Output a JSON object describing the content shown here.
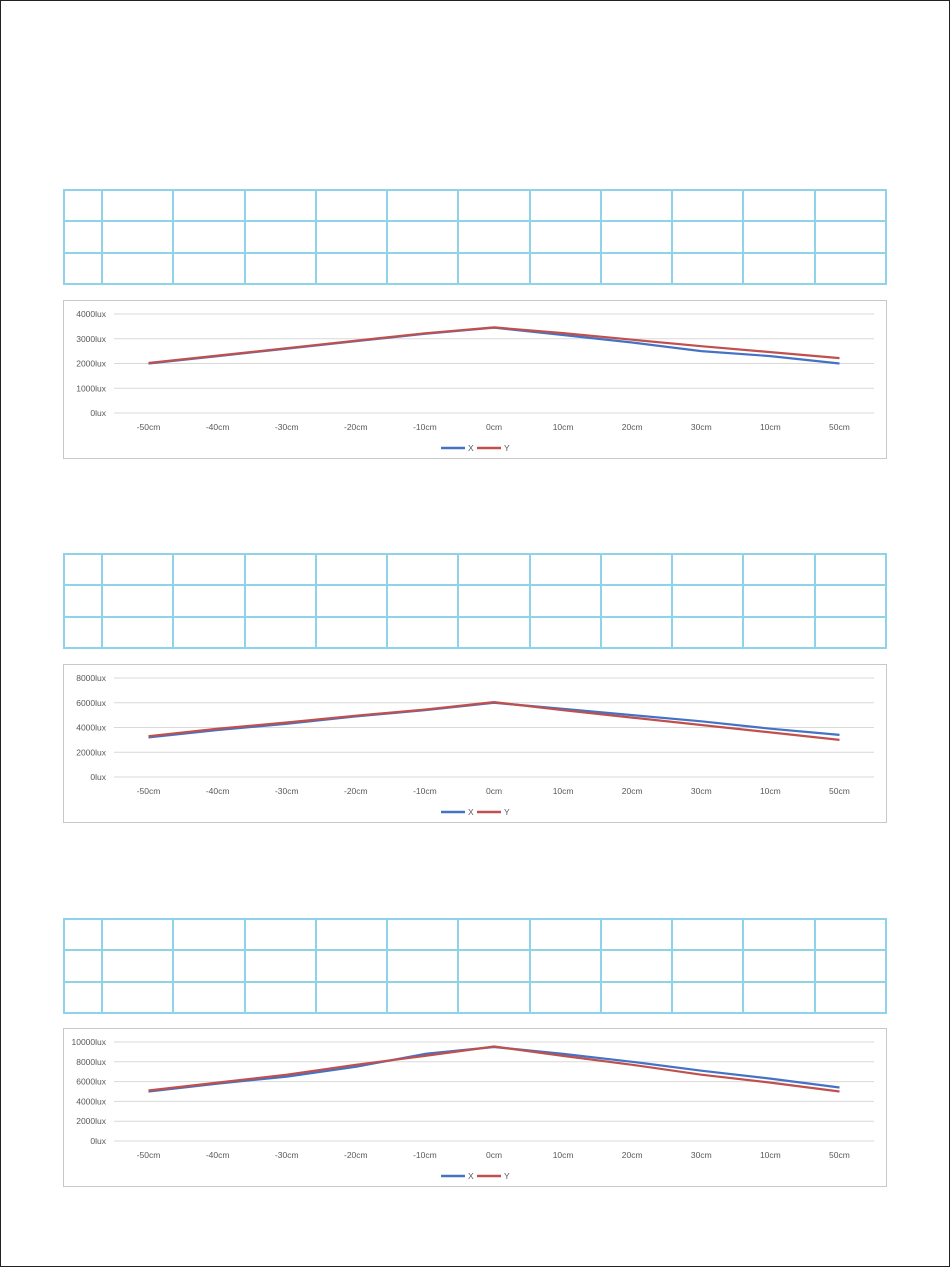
{
  "colors": {
    "series_x": "#4472c4",
    "series_y": "#c0504d",
    "table_border": "#8fd3ea",
    "grid": "#d9d9d9"
  },
  "chart_data": [
    {
      "type": "line",
      "categories": [
        "-50cm",
        "-40cm",
        "-30cm",
        "-20cm",
        "-10cm",
        "0cm",
        "10cm",
        "20cm",
        "30cm",
        "10cm",
        "50cm"
      ],
      "ylim": [
        0,
        4000
      ],
      "yticks": [
        "0lux",
        "1000lux",
        "2000lux",
        "3000lux",
        "4000lux"
      ],
      "yticks_values": [
        0,
        1000,
        2000,
        3000,
        4000
      ],
      "legend": "bottom",
      "grid": true,
      "series": [
        {
          "name": "X",
          "values": [
            2000,
            2300,
            2600,
            2900,
            3200,
            3450,
            3150,
            2850,
            2500,
            2300,
            2000
          ]
        },
        {
          "name": "Y",
          "values": [
            2020,
            2320,
            2620,
            2920,
            3220,
            3460,
            3230,
            2960,
            2700,
            2460,
            2220
          ]
        }
      ]
    },
    {
      "type": "line",
      "categories": [
        "-50cm",
        "-40cm",
        "-30cm",
        "-20cm",
        "-10cm",
        "0cm",
        "10cm",
        "20cm",
        "30cm",
        "10cm",
        "50cm"
      ],
      "ylim": [
        0,
        8000
      ],
      "yticks": [
        "0lux",
        "2000lux",
        "4000lux",
        "6000lux",
        "8000lux"
      ],
      "yticks_values": [
        0,
        2000,
        4000,
        6000,
        8000
      ],
      "legend": "bottom",
      "grid": true,
      "series": [
        {
          "name": "X",
          "values": [
            3200,
            3800,
            4300,
            4900,
            5400,
            6000,
            5500,
            5000,
            4500,
            3900,
            3400
          ]
        },
        {
          "name": "Y",
          "values": [
            3300,
            3900,
            4400,
            4950,
            5450,
            6050,
            5400,
            4800,
            4200,
            3600,
            3000
          ]
        }
      ]
    },
    {
      "type": "line",
      "categories": [
        "-50cm",
        "-40cm",
        "-30cm",
        "-20cm",
        "-10cm",
        "0cm",
        "10cm",
        "20cm",
        "30cm",
        "10cm",
        "50cm"
      ],
      "ylim": [
        0,
        10000
      ],
      "yticks": [
        "0lux",
        "2000lux",
        "4000lux",
        "6000lux",
        "8000lux",
        "10000lux"
      ],
      "yticks_values": [
        0,
        2000,
        4000,
        6000,
        8000,
        10000
      ],
      "legend": "bottom",
      "grid": true,
      "series": [
        {
          "name": "X",
          "values": [
            5000,
            5800,
            6500,
            7500,
            8800,
            9500,
            8800,
            8000,
            7100,
            6300,
            5400
          ]
        },
        {
          "name": "Y",
          "values": [
            5100,
            5900,
            6700,
            7700,
            8600,
            9550,
            8600,
            7700,
            6700,
            5900,
            5000
          ]
        }
      ]
    }
  ]
}
